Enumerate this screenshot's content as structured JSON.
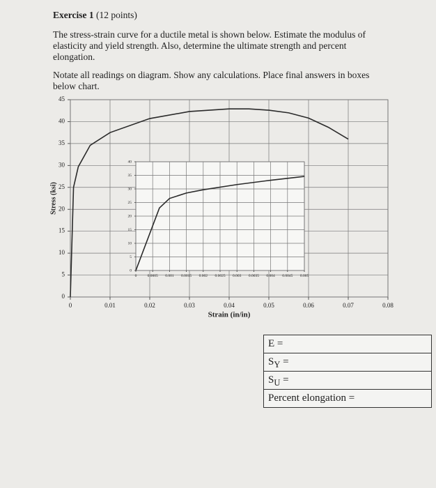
{
  "title": "Exercise 1",
  "points": "(12 points)",
  "paragraphs": [
    "The stress-strain curve for a ductile metal is shown below. Estimate the modulus of elasticity and yield strength. Also, determine the ultimate strength and percent elongation.",
    "Notate all readings on diagram. Show any calculations. Place final answers in boxes below chart."
  ],
  "chart_data": [
    {
      "type": "line",
      "xlabel": "Strain (in/in)",
      "ylabel": "Stress (ksi)",
      "color": "#2a2a2a",
      "grid": true,
      "x": [
        0,
        0.0008,
        0.002,
        0.005,
        0.01,
        0.02,
        0.03,
        0.04,
        0.045,
        0.05,
        0.055,
        0.06,
        0.065,
        0.07
      ],
      "values": [
        0,
        25,
        29.7,
        34.6,
        37.5,
        40.7,
        42.3,
        42.9,
        42.9,
        42.6,
        42,
        40.8,
        38.7,
        36
      ],
      "xlim": [
        0,
        0.08
      ],
      "xticks": [
        0,
        0.01,
        0.02,
        0.03,
        0.04,
        0.05,
        0.06,
        0.07,
        0.08
      ],
      "ylim": [
        0,
        45
      ],
      "yticks": [
        0,
        5,
        10,
        15,
        20,
        25,
        30,
        35,
        40,
        45
      ]
    },
    {
      "type": "line",
      "color": "#2a2a2a",
      "grid": true,
      "x": [
        0,
        0.0007,
        0.001,
        0.0015,
        0.002,
        0.003,
        0.004,
        0.005
      ],
      "values": [
        0,
        23,
        26.5,
        28.5,
        29.7,
        31.6,
        33.2,
        34.6
      ],
      "xlim": [
        0,
        0.005
      ],
      "xticks": [
        0,
        0.0005,
        0.001,
        0.0015,
        0.002,
        0.0025,
        0.003,
        0.0035,
        0.004,
        0.0045,
        0.005
      ],
      "ylim": [
        0,
        40
      ],
      "yticks": [
        0,
        5,
        10,
        15,
        20,
        25,
        30,
        35,
        40
      ]
    }
  ],
  "answers": [
    {
      "symbol": "E",
      "equals": "="
    },
    {
      "symbol": "S",
      "subscript": "Y",
      "equals": "="
    },
    {
      "symbol": "S",
      "subscript": "U",
      "equals": "="
    },
    {
      "symbol": "Percent elongation",
      "equals": "="
    }
  ]
}
